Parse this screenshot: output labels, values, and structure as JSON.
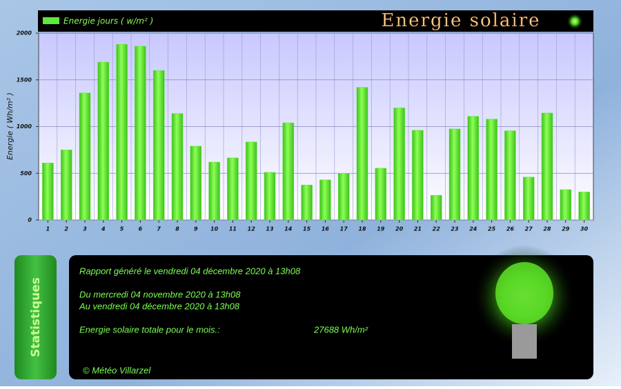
{
  "chart_data": {
    "type": "bar",
    "title": "Energie solaire",
    "y_label": "Energie ( Wh/m² )",
    "categories": [
      "1",
      "2",
      "3",
      "4",
      "5",
      "6",
      "7",
      "8",
      "9",
      "10",
      "11",
      "12",
      "13",
      "14",
      "15",
      "16",
      "17",
      "18",
      "19",
      "20",
      "21",
      "22",
      "23",
      "24",
      "25",
      "26",
      "27",
      "28",
      "29",
      "30"
    ],
    "series": [
      {
        "name": "Energie jours ( w/m² )",
        "color": "#5de83a",
        "values": [
          610,
          750,
          1360,
          1690,
          1880,
          1860,
          1600,
          1140,
          790,
          620,
          665,
          835,
          510,
          1040,
          375,
          430,
          500,
          1420,
          555,
          1200,
          960,
          265,
          975,
          1110,
          1080,
          955,
          460,
          1145,
          325,
          300
        ]
      }
    ],
    "ylim": [
      0,
      2000
    ],
    "yticks": [
      0,
      500,
      1000,
      1500,
      2000
    ],
    "grid": true,
    "legend": "upper left"
  },
  "stats": {
    "tab": "Statistiques",
    "lines": [
      "Rapport généré le vendredi 04 décembre 2020 à 13h08",
      "Du mercredi 04 novembre 2020 à 13h08",
      "Au vendredi 04 décembre 2020 à 13h08"
    ],
    "total_label": "Energie solaire totale pour le mois.:",
    "total_value": "27688 Wh/m²",
    "credit": "© Météo Villarzel"
  }
}
